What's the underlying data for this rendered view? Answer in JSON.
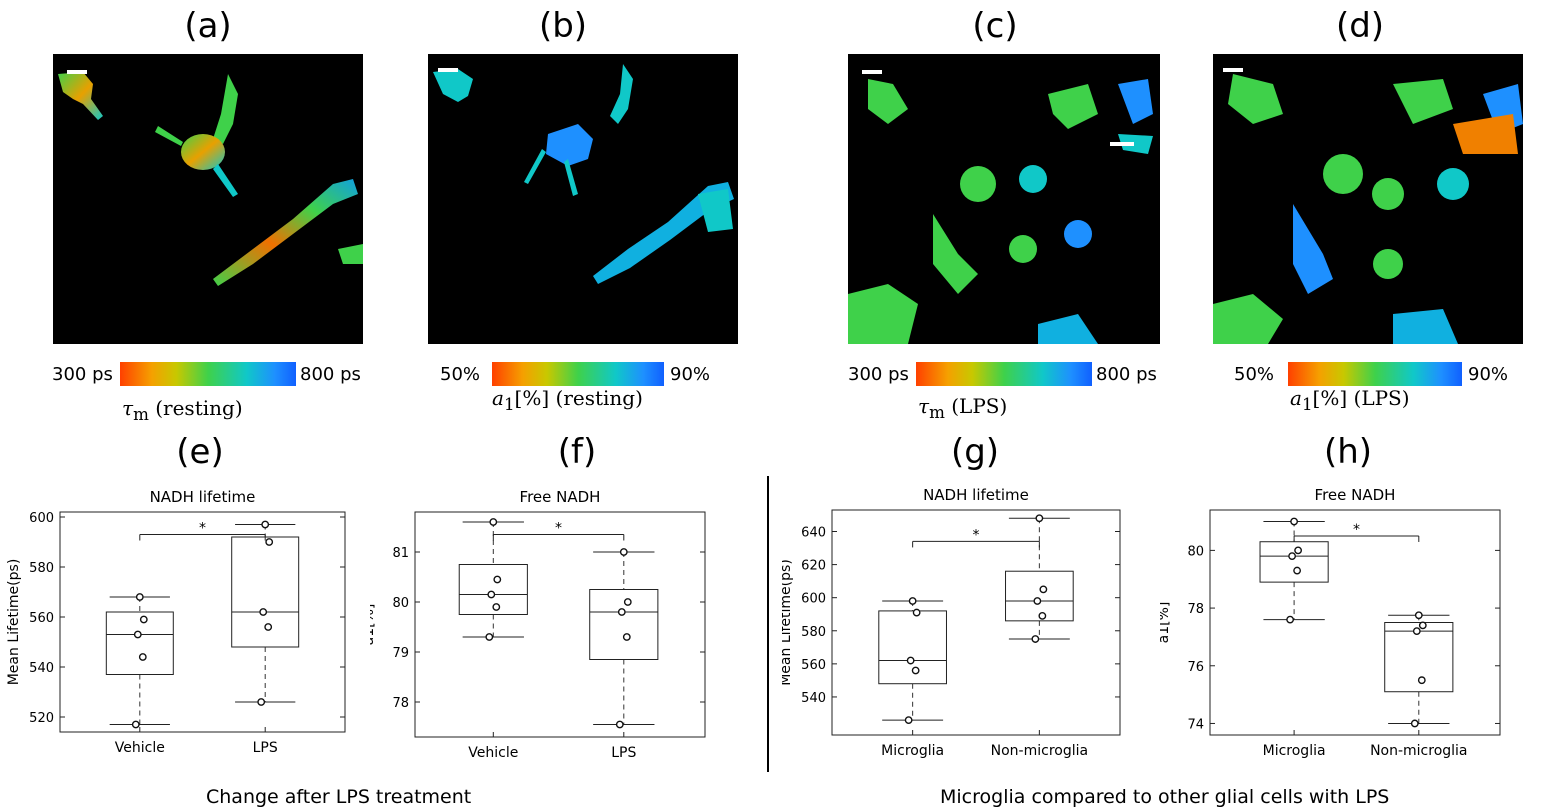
{
  "panels": {
    "a": {
      "letter": "(a)",
      "cb_min": "300 ps",
      "cb_max": "800 ps",
      "sym": "τ",
      "sub": "m",
      "title_rest": " (resting)"
    },
    "b": {
      "letter": "(b)",
      "cb_min": "50%",
      "cb_max": "90%",
      "sym": "a",
      "sub": "1",
      "title_rest": "[%] (resting)"
    },
    "c": {
      "letter": "(c)",
      "cb_min": "300 ps",
      "cb_max": "800 ps",
      "sym": "τ",
      "sub": "m",
      "title_rest": " (LPS)"
    },
    "d": {
      "letter": "(d)",
      "cb_min": "50%",
      "cb_max": "90%",
      "sym": "a",
      "sub": "1",
      "title_rest": "[%] (LPS)"
    },
    "e": {
      "letter": "(e)"
    },
    "f": {
      "letter": "(f)"
    },
    "g": {
      "letter": "(g)"
    },
    "h": {
      "letter": "(h)"
    }
  },
  "captions": {
    "left": "Change after LPS treatment",
    "right": "Microglia compared to other glial cells with LPS"
  },
  "colors": {
    "lifetime_scale": [
      "#ff4000",
      "#f5a000",
      "#3fd14a",
      "#10c8c8",
      "#1060ff"
    ]
  },
  "chart_data": [
    {
      "type": "box",
      "panel": "e",
      "title": "NADH lifetime",
      "ylabel": "Mean Lifetime(ps)",
      "categories": [
        "Vehicle",
        "LPS"
      ],
      "ylim": [
        514,
        602
      ],
      "yticks": [
        520,
        540,
        560,
        580,
        600
      ],
      "boxes": [
        {
          "min": 517,
          "q1": 537,
          "median": 553,
          "q3": 562,
          "max": 568,
          "points": [
            517,
            544,
            553,
            559,
            568
          ]
        },
        {
          "min": 526,
          "q1": 548,
          "median": 562,
          "q3": 592,
          "max": 597,
          "points": [
            526,
            556,
            562,
            590,
            597
          ]
        }
      ],
      "significance": {
        "label": "*",
        "pair": [
          0,
          1
        ],
        "y": 593
      }
    },
    {
      "type": "box",
      "panel": "f",
      "title": "Free NADH",
      "ylabel": "a1[%]",
      "categories": [
        "Vehicle",
        "LPS"
      ],
      "ylim": [
        77.3,
        81.8
      ],
      "yticks": [
        78,
        79,
        80,
        81
      ],
      "boxes": [
        {
          "min": 79.3,
          "q1": 79.75,
          "median": 80.15,
          "q3": 80.75,
          "max": 81.6,
          "points": [
            79.3,
            79.9,
            80.15,
            80.45,
            81.6
          ]
        },
        {
          "min": 77.55,
          "q1": 78.85,
          "median": 79.8,
          "q3": 80.25,
          "max": 81.0,
          "points": [
            77.55,
            79.3,
            79.8,
            80.0,
            81.0
          ]
        }
      ],
      "significance": {
        "label": "*",
        "pair": [
          0,
          1
        ],
        "y": 81.35
      }
    },
    {
      "type": "box",
      "panel": "g",
      "title": "NADH lifetime",
      "ylabel": "Mean Lifetime(ps)",
      "categories": [
        "Microglia",
        "Non-microglia"
      ],
      "ylim": [
        517,
        653
      ],
      "yticks": [
        540,
        560,
        580,
        600,
        620,
        640
      ],
      "boxes": [
        {
          "min": 526,
          "q1": 548,
          "median": 562,
          "q3": 592,
          "max": 598,
          "points": [
            526,
            556,
            562,
            591,
            598
          ]
        },
        {
          "min": 575,
          "q1": 586,
          "median": 598,
          "q3": 616,
          "max": 648,
          "points": [
            575,
            589,
            598,
            605,
            648
          ]
        }
      ],
      "significance": {
        "label": "*",
        "pair": [
          0,
          1
        ],
        "y": 634
      }
    },
    {
      "type": "box",
      "panel": "h",
      "title": "Free NADH",
      "ylabel": "a1[%]",
      "categories": [
        "Microglia",
        "Non-microglia"
      ],
      "ylim": [
        73.6,
        81.4
      ],
      "yticks": [
        74,
        76,
        78,
        80
      ],
      "boxes": [
        {
          "min": 77.6,
          "q1": 78.9,
          "median": 79.8,
          "q3": 80.3,
          "max": 81.0,
          "points": [
            77.6,
            79.3,
            79.8,
            80.0,
            81.0
          ]
        },
        {
          "min": 74.0,
          "q1": 75.1,
          "median": 77.2,
          "q3": 77.5,
          "max": 77.75,
          "points": [
            74.0,
            75.5,
            77.2,
            77.4,
            77.75
          ]
        }
      ],
      "significance": {
        "label": "*",
        "pair": [
          0,
          1
        ],
        "y": 80.5
      }
    }
  ]
}
